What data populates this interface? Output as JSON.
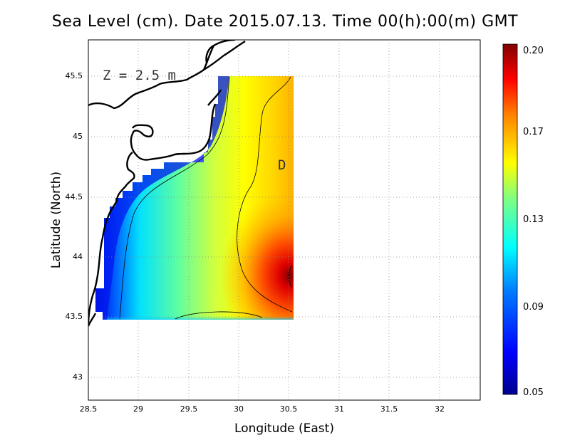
{
  "title": "Sea Level (cm). Date 2015.07.13. Time 00(h):00(m) GMT",
  "annotation": "Z = 2.5 m",
  "contour_label": "D",
  "x_axis": {
    "label": "Longitude (East)",
    "ticks": [
      "28.5",
      "29",
      "29.5",
      "30",
      "30.5",
      "31",
      "31.5",
      "32"
    ],
    "range": [
      28.5,
      32.4
    ]
  },
  "y_axis": {
    "label": "Latitude (North)",
    "ticks": [
      "43",
      "43.5",
      "44",
      "44.5",
      "45",
      "45.5"
    ],
    "range": [
      42.8,
      45.8
    ]
  },
  "colorbar": {
    "ticks": [
      "0.20",
      "0.17",
      "0.13",
      "0.09",
      "0.05"
    ],
    "min": 0.05,
    "max": 0.2,
    "colors": [
      "#00008f",
      "#0000ff",
      "#0080ff",
      "#00ffff",
      "#80ff80",
      "#ffff00",
      "#ff8000",
      "#ff0000",
      "#800000"
    ]
  },
  "grid": true,
  "gridline_style": "dotted"
}
